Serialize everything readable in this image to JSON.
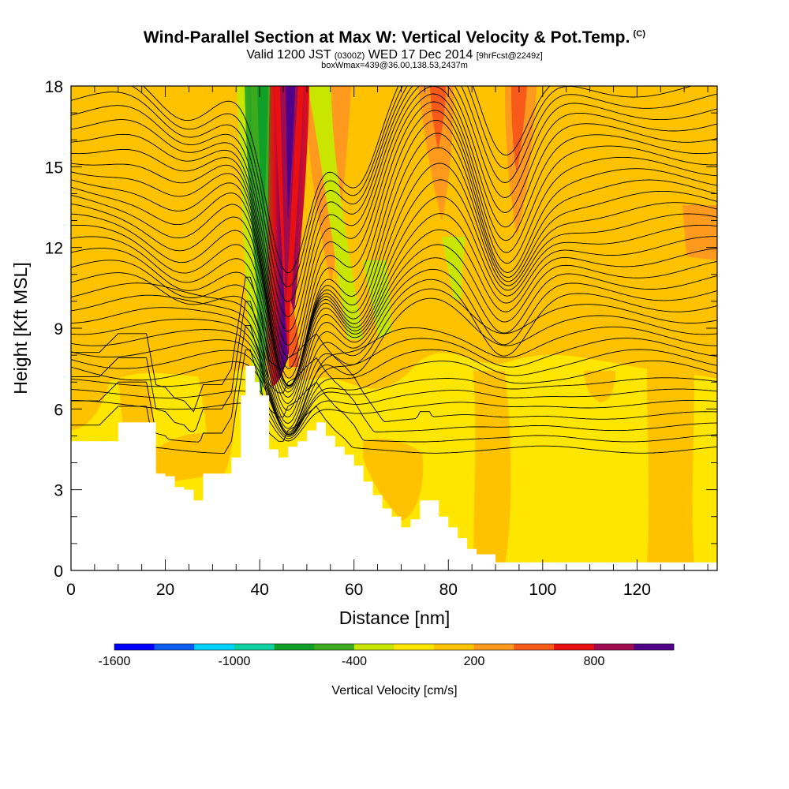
{
  "header": {
    "title": "Wind-Parallel Section at Max W: Vertical Velocity & Pot.Temp.",
    "copyright": "(C)",
    "subtitle_main_a": "Valid 1200 JST",
    "subtitle_small_a": "(0300Z)",
    "subtitle_main_b": "WED 17 Dec 2014",
    "subtitle_small_b": "[9hrFcst@2249z]",
    "subtitle2": "boxWmax=439@36.00,138.53,2437m"
  },
  "colors": {
    "background_field": "#ffe600",
    "positive_light": "#ffc200",
    "positive_mid": "#ff9a1e",
    "positive_strong": "#f85a1a",
    "red": "#e81010",
    "maroon": "#a00c50",
    "purple": "#500088",
    "negative_light": "#c8e600",
    "negative_mid": "#3caa1e",
    "negative_strong": "#10a028",
    "terrain": "#ffffff"
  },
  "chart_data": {
    "type": "heatmap",
    "title": "Wind-Parallel Section at Max W: Vertical Velocity & Pot.Temp.",
    "xlabel": "Distance [nm]",
    "ylabel": "Height [Kft MSL]",
    "xlim": [
      0,
      137
    ],
    "ylim": [
      0,
      18
    ],
    "xticks": [
      0,
      20,
      40,
      60,
      80,
      100,
      120
    ],
    "yticks": [
      0,
      3,
      6,
      9,
      12,
      15,
      18
    ],
    "colorbar": {
      "label": "Vertical Velocity [cm/s]",
      "tick_labels": [
        -1600,
        -1000,
        -400,
        200,
        800
      ],
      "colors": [
        "#0000ff",
        "#0a5cf0",
        "#00d2ff",
        "#0fd2a0",
        "#10a028",
        "#3caa1e",
        "#c8e600",
        "#ffe600",
        "#ffc200",
        "#ff9a1e",
        "#f85a1a",
        "#e81010",
        "#a00c50",
        "#500088"
      ]
    },
    "terrain": {
      "x": [
        0,
        6,
        10,
        16,
        18,
        20,
        22,
        24,
        26,
        28,
        32,
        34,
        36,
        37,
        38,
        39,
        40,
        42,
        44,
        45,
        46,
        48,
        50,
        52,
        54,
        56,
        58,
        60,
        62,
        64,
        66,
        68,
        70,
        72,
        74,
        75,
        76,
        78,
        80,
        82,
        84,
        86,
        90,
        100,
        110,
        120,
        130,
        137
      ],
      "height_kft": [
        4.8,
        4.8,
        5.5,
        5.5,
        3.6,
        3.5,
        3.1,
        3.0,
        2.6,
        3.6,
        3.6,
        4.2,
        6.5,
        7.6,
        7.6,
        7.0,
        6.5,
        4.5,
        4.2,
        4.2,
        4.6,
        4.8,
        5.2,
        5.5,
        5.0,
        4.6,
        4.3,
        3.9,
        3.3,
        2.8,
        2.3,
        2.0,
        1.6,
        1.9,
        2.6,
        2.6,
        2.6,
        2.0,
        1.6,
        1.2,
        0.8,
        0.6,
        0.3,
        0.3,
        0.3,
        0.3,
        0.3,
        0.3
      ]
    }
  }
}
